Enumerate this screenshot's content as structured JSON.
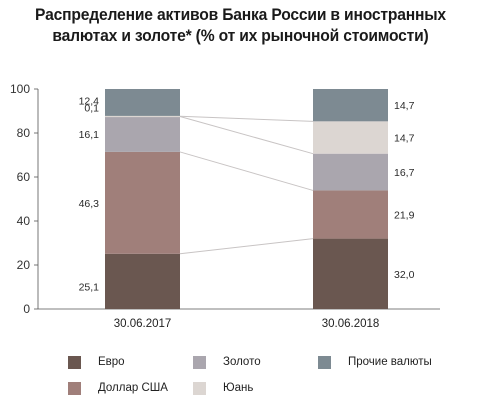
{
  "chart_data": {
    "type": "bar",
    "stacked": true,
    "title_lines": [
      "Распределение активов Банка России в иностранных",
      "валютах и золоте* (% от их рыночной стоимости)"
    ],
    "categories": [
      "30.06.2017",
      "30.06.2018"
    ],
    "ylim": [
      0,
      100
    ],
    "yticks": [
      0,
      20,
      40,
      60,
      80,
      100
    ],
    "grid": false,
    "legend_position": "bottom",
    "series": [
      {
        "name": "Евро",
        "color": "#6a5750",
        "values": [
          25.1,
          32.0
        ],
        "labels": [
          "25,1",
          "32,0"
        ]
      },
      {
        "name": "Доллар США",
        "color": "#a07f7a",
        "values": [
          46.3,
          21.9
        ],
        "labels": [
          "46,3",
          "21,9"
        ]
      },
      {
        "name": "Золото",
        "color": "#aaa6ae",
        "values": [
          16.1,
          16.7
        ],
        "labels": [
          "16,1",
          "16,7"
        ]
      },
      {
        "name": "Юань",
        "color": "#dcd6d2",
        "values": [
          0.1,
          14.7
        ],
        "labels": [
          "0,1",
          "14,7"
        ]
      },
      {
        "name": "Прочие валюты",
        "color": "#7d8a92",
        "values": [
          12.4,
          14.7
        ],
        "labels": [
          "12,4",
          "14,7"
        ]
      }
    ],
    "legend_order": [
      "Евро",
      "Золото",
      "Прочие валюты",
      "Доллар США",
      "Юань"
    ]
  }
}
